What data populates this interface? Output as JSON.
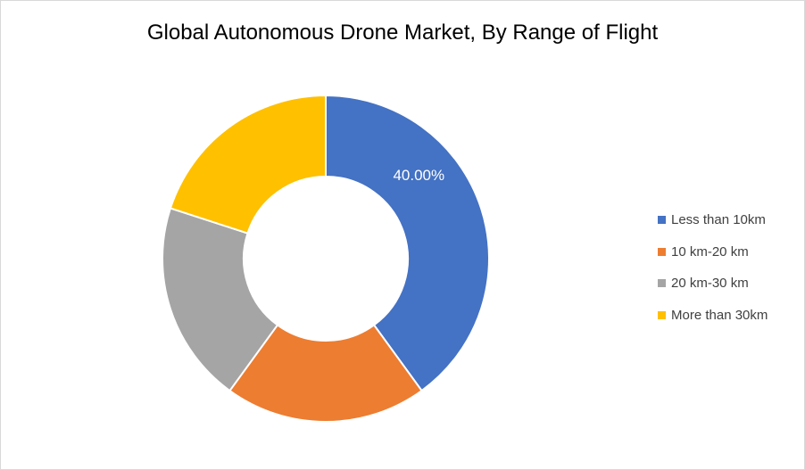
{
  "chart_data": {
    "type": "donut",
    "title": "Global Autonomous Drone Market, By Range of Flight",
    "categories": [
      "Less than 10km",
      "10 km-20 km",
      "20 km-30 km",
      "More than 30km"
    ],
    "values": [
      40,
      20,
      20,
      20
    ],
    "colors": [
      "#4472C4",
      "#ED7D31",
      "#A5A5A5",
      "#FFC000"
    ],
    "data_labels": [
      "40.00%",
      "",
      "",
      ""
    ],
    "legend_position": "right"
  }
}
